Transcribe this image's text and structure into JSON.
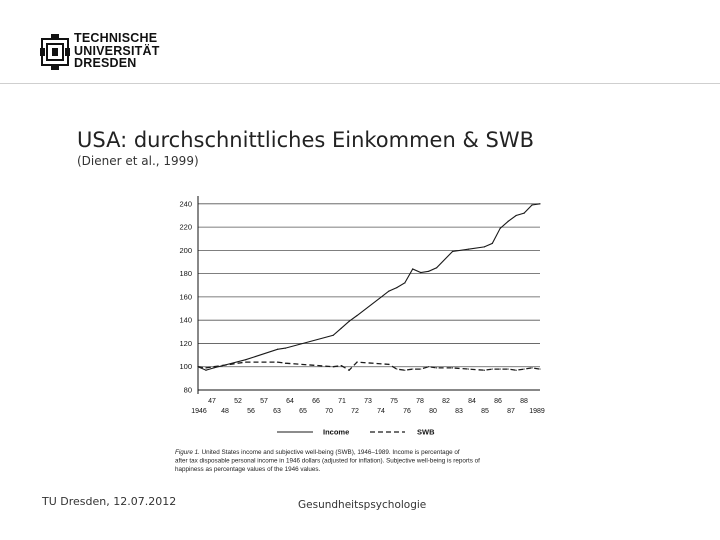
{
  "header": {
    "logo_lines": [
      "TECHNISCHE",
      "UNIVERSITÄT",
      "DRESDEN"
    ]
  },
  "slide": {
    "title": "USA: durchschnittliches Einkommen & SWB",
    "subtitle": "(Diener et al., 1999)"
  },
  "footer": {
    "left": "TU Dresden, 12.07.2012",
    "center": "Gesundheitspsychologie"
  },
  "chart_data": {
    "type": "line",
    "x": [
      1946,
      1947,
      1948,
      1952,
      1956,
      1957,
      1963,
      1964,
      1965,
      1966,
      1970,
      1971,
      1972,
      1973,
      1974,
      1975,
      1976,
      1978,
      1980,
      1982,
      1983,
      1984,
      1985,
      1986,
      1987,
      1988,
      1989
    ],
    "x_tick_labels_top": [
      "47",
      "52",
      "57",
      "64",
      "66",
      "71",
      "73",
      "75",
      "78",
      "82",
      "84",
      "86",
      "88"
    ],
    "x_tick_labels_bottom": [
      "1946",
      "48",
      "56",
      "63",
      "65",
      "70",
      "72",
      "74",
      "76",
      "80",
      "83",
      "85",
      "87",
      "1989"
    ],
    "ylim": [
      80,
      245
    ],
    "yticks": [
      80,
      100,
      120,
      140,
      160,
      180,
      200,
      220,
      240
    ],
    "grid": "horizontal",
    "series": [
      {
        "name": "Income",
        "style": "solid",
        "values": [
          100,
          97,
          99,
          106,
          115,
          116,
          127,
          133,
          139,
          144,
          165,
          168,
          172,
          184,
          181,
          182,
          185,
          199,
          201,
          203,
          206,
          219,
          225,
          230,
          232,
          239,
          240
        ]
      },
      {
        "name": "SWB",
        "style": "dashed",
        "values": [
          100,
          99,
          100,
          104,
          104,
          103,
          100,
          101,
          97,
          104,
          102,
          98,
          97,
          98,
          98,
          100,
          99,
          99,
          98,
          97,
          98,
          98,
          98,
          97,
          98,
          99,
          98
        ]
      }
    ],
    "legend": {
      "position": "bottom",
      "labels": [
        "Income",
        "SWB"
      ]
    },
    "caption": {
      "label": "Figure 1.",
      "lines": [
        "United States income and subjective well-being (SWB), 1946–1989. Income is percentage of",
        "after tax disposable personal income in 1946 dollars (adjusted for inflation). Subjective well-being is reports of",
        "happiness as percentage values of the 1946 values."
      ]
    },
    "colors": {
      "line": "#1a1a1a",
      "grid": "#555555",
      "axis": "#111111"
    }
  }
}
